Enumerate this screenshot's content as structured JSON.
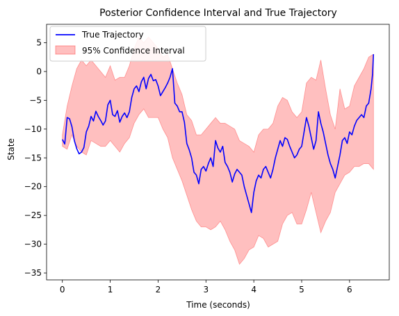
{
  "chart_data": {
    "type": "line",
    "title": "Posterior Confidence Interval and True Trajectory",
    "xlabel": "Time (seconds)",
    "ylabel": "State",
    "xlim": [
      -0.33,
      6.83
    ],
    "ylim": [
      -36.2,
      8.2
    ],
    "x_ticks": [
      0,
      1,
      2,
      3,
      4,
      5,
      6
    ],
    "y_ticks": [
      5,
      0,
      -5,
      -10,
      -15,
      -20,
      -25,
      -30,
      -35
    ],
    "x_tick_labels": [
      "0",
      "1",
      "2",
      "3",
      "4",
      "5",
      "6"
    ],
    "y_tick_labels": [
      "5",
      "0",
      "−5",
      "−10",
      "−15",
      "−20",
      "−25",
      "−30",
      "−35"
    ],
    "grid": false,
    "legend_position": "upper-left",
    "series": [
      {
        "name": "True Trajectory",
        "kind": "line",
        "color": "#0000ff",
        "points": [
          [
            0.0,
            -11.8
          ],
          [
            0.05,
            -12.6
          ],
          [
            0.1,
            -8.0
          ],
          [
            0.15,
            -8.2
          ],
          [
            0.2,
            -9.6
          ],
          [
            0.25,
            -12.0
          ],
          [
            0.3,
            -13.4
          ],
          [
            0.35,
            -14.3
          ],
          [
            0.4,
            -14.0
          ],
          [
            0.45,
            -13.2
          ],
          [
            0.5,
            -10.5
          ],
          [
            0.55,
            -9.5
          ],
          [
            0.6,
            -7.8
          ],
          [
            0.65,
            -8.6
          ],
          [
            0.7,
            -6.9
          ],
          [
            0.75,
            -7.8
          ],
          [
            0.8,
            -8.5
          ],
          [
            0.85,
            -9.3
          ],
          [
            0.9,
            -8.6
          ],
          [
            0.95,
            -5.8
          ],
          [
            1.0,
            -5.0
          ],
          [
            1.05,
            -7.5
          ],
          [
            1.1,
            -7.8
          ],
          [
            1.15,
            -6.8
          ],
          [
            1.2,
            -8.8
          ],
          [
            1.25,
            -7.8
          ],
          [
            1.3,
            -7.2
          ],
          [
            1.35,
            -8.0
          ],
          [
            1.4,
            -7.0
          ],
          [
            1.45,
            -4.5
          ],
          [
            1.5,
            -3.0
          ],
          [
            1.55,
            -2.5
          ],
          [
            1.6,
            -3.5
          ],
          [
            1.65,
            -1.8
          ],
          [
            1.7,
            -1.0
          ],
          [
            1.75,
            -3.0
          ],
          [
            1.8,
            -1.2
          ],
          [
            1.85,
            -0.5
          ],
          [
            1.9,
            -1.6
          ],
          [
            1.95,
            -1.4
          ],
          [
            2.0,
            -2.5
          ],
          [
            2.05,
            -4.2
          ],
          [
            2.1,
            -3.5
          ],
          [
            2.15,
            -2.8
          ],
          [
            2.2,
            -2.0
          ],
          [
            2.25,
            -1.0
          ],
          [
            2.3,
            0.5
          ],
          [
            2.35,
            -5.5
          ],
          [
            2.4,
            -6.0
          ],
          [
            2.45,
            -7.0
          ],
          [
            2.5,
            -7.0
          ],
          [
            2.55,
            -8.8
          ],
          [
            2.6,
            -12.5
          ],
          [
            2.65,
            -13.6
          ],
          [
            2.7,
            -15.0
          ],
          [
            2.75,
            -17.5
          ],
          [
            2.8,
            -18.0
          ],
          [
            2.85,
            -19.5
          ],
          [
            2.9,
            -17.0
          ],
          [
            2.95,
            -16.5
          ],
          [
            3.0,
            -17.3
          ],
          [
            3.05,
            -16.0
          ],
          [
            3.1,
            -15.0
          ],
          [
            3.15,
            -16.5
          ],
          [
            3.2,
            -12.0
          ],
          [
            3.25,
            -13.3
          ],
          [
            3.3,
            -14.0
          ],
          [
            3.35,
            -13.0
          ],
          [
            3.4,
            -15.8
          ],
          [
            3.45,
            -16.5
          ],
          [
            3.5,
            -17.5
          ],
          [
            3.55,
            -19.2
          ],
          [
            3.6,
            -17.8
          ],
          [
            3.65,
            -17.0
          ],
          [
            3.7,
            -17.5
          ],
          [
            3.75,
            -18.0
          ],
          [
            3.8,
            -20.0
          ],
          [
            3.85,
            -21.5
          ],
          [
            3.9,
            -23.0
          ],
          [
            3.95,
            -24.5
          ],
          [
            4.0,
            -21.0
          ],
          [
            4.05,
            -19.0
          ],
          [
            4.1,
            -18.0
          ],
          [
            4.15,
            -18.5
          ],
          [
            4.2,
            -17.0
          ],
          [
            4.25,
            -16.5
          ],
          [
            4.3,
            -17.5
          ],
          [
            4.35,
            -18.5
          ],
          [
            4.4,
            -17.0
          ],
          [
            4.45,
            -15.0
          ],
          [
            4.5,
            -13.5
          ],
          [
            4.55,
            -12.0
          ],
          [
            4.6,
            -13.0
          ],
          [
            4.65,
            -11.5
          ],
          [
            4.7,
            -11.8
          ],
          [
            4.75,
            -13.0
          ],
          [
            4.8,
            -14.0
          ],
          [
            4.85,
            -15.0
          ],
          [
            4.9,
            -14.5
          ],
          [
            4.95,
            -13.5
          ],
          [
            5.0,
            -13.0
          ],
          [
            5.05,
            -10.5
          ],
          [
            5.1,
            -8.0
          ],
          [
            5.15,
            -9.5
          ],
          [
            5.2,
            -11.5
          ],
          [
            5.25,
            -13.5
          ],
          [
            5.3,
            -12.0
          ],
          [
            5.35,
            -7.0
          ],
          [
            5.4,
            -9.0
          ],
          [
            5.45,
            -10.5
          ],
          [
            5.5,
            -12.5
          ],
          [
            5.55,
            -14.5
          ],
          [
            5.6,
            -16.0
          ],
          [
            5.65,
            -17.0
          ],
          [
            5.7,
            -18.5
          ],
          [
            5.75,
            -16.5
          ],
          [
            5.8,
            -14.5
          ],
          [
            5.85,
            -12.0
          ],
          [
            5.9,
            -11.5
          ],
          [
            5.95,
            -12.5
          ],
          [
            6.0,
            -10.5
          ],
          [
            6.05,
            -11.0
          ],
          [
            6.1,
            -9.5
          ],
          [
            6.15,
            -8.5
          ],
          [
            6.2,
            -8.0
          ],
          [
            6.25,
            -7.5
          ],
          [
            6.3,
            -8.0
          ],
          [
            6.35,
            -6.0
          ],
          [
            6.4,
            -5.5
          ],
          [
            6.45,
            -3.0
          ],
          [
            6.48,
            -0.5
          ],
          [
            6.5,
            3.0
          ]
        ]
      },
      {
        "name": "95% Confidence Interval",
        "kind": "band",
        "color": "#ff0000",
        "fill_opacity": 0.25,
        "x": [
          0.0,
          0.1,
          0.2,
          0.3,
          0.4,
          0.5,
          0.6,
          0.7,
          0.8,
          0.9,
          1.0,
          1.1,
          1.2,
          1.3,
          1.4,
          1.5,
          1.6,
          1.7,
          1.8,
          1.9,
          2.0,
          2.1,
          2.2,
          2.3,
          2.4,
          2.5,
          2.6,
          2.7,
          2.8,
          2.9,
          3.0,
          3.1,
          3.2,
          3.3,
          3.4,
          3.5,
          3.6,
          3.7,
          3.8,
          3.9,
          4.0,
          4.1,
          4.2,
          4.3,
          4.4,
          4.5,
          4.6,
          4.7,
          4.8,
          4.9,
          5.0,
          5.1,
          5.2,
          5.3,
          5.4,
          5.5,
          5.6,
          5.7,
          5.8,
          5.9,
          6.0,
          6.1,
          6.2,
          6.3,
          6.4,
          6.5
        ],
        "upper": [
          -11.0,
          -6.0,
          -2.5,
          0.5,
          2.0,
          1.0,
          2.0,
          1.0,
          0.0,
          -1.0,
          1.0,
          -1.5,
          -1.0,
          -1.0,
          1.0,
          4.0,
          6.0,
          5.0,
          6.0,
          5.0,
          4.0,
          2.5,
          3.0,
          0.5,
          -2.0,
          -4.0,
          -7.5,
          -8.5,
          -11.0,
          -11.0,
          -10.0,
          -9.0,
          -8.0,
          -9.0,
          -9.0,
          -9.5,
          -10.0,
          -12.0,
          -12.5,
          -13.0,
          -14.0,
          -11.0,
          -10.0,
          -10.0,
          -9.0,
          -6.0,
          -4.5,
          -5.0,
          -7.0,
          -8.0,
          -7.0,
          -2.0,
          -1.0,
          -1.5,
          2.0,
          -3.0,
          -7.5,
          -10.0,
          -3.0,
          -6.5,
          -6.0,
          -2.5,
          -1.0,
          0.5,
          2.5,
          3.0
        ],
        "lower": [
          -13.0,
          -13.5,
          -11.0,
          -13.0,
          -14.0,
          -14.5,
          -12.0,
          -12.5,
          -13.0,
          -13.0,
          -12.0,
          -13.0,
          -14.0,
          -12.5,
          -11.5,
          -9.0,
          -7.5,
          -6.5,
          -8.0,
          -8.0,
          -8.0,
          -10.0,
          -11.5,
          -15.0,
          -17.0,
          -19.0,
          -21.5,
          -24.0,
          -26.0,
          -27.0,
          -27.0,
          -27.5,
          -27.0,
          -26.0,
          -27.5,
          -29.5,
          -31.0,
          -33.5,
          -32.5,
          -31.0,
          -30.5,
          -28.5,
          -29.0,
          -30.5,
          -30.0,
          -29.5,
          -26.5,
          -25.0,
          -24.5,
          -26.5,
          -26.5,
          -24.0,
          -21.0,
          -24.5,
          -28.0,
          -26.0,
          -24.5,
          -21.0,
          -19.5,
          -18.0,
          -17.5,
          -16.5,
          -16.5,
          -16.0,
          -16.0,
          -17.0
        ]
      }
    ]
  }
}
